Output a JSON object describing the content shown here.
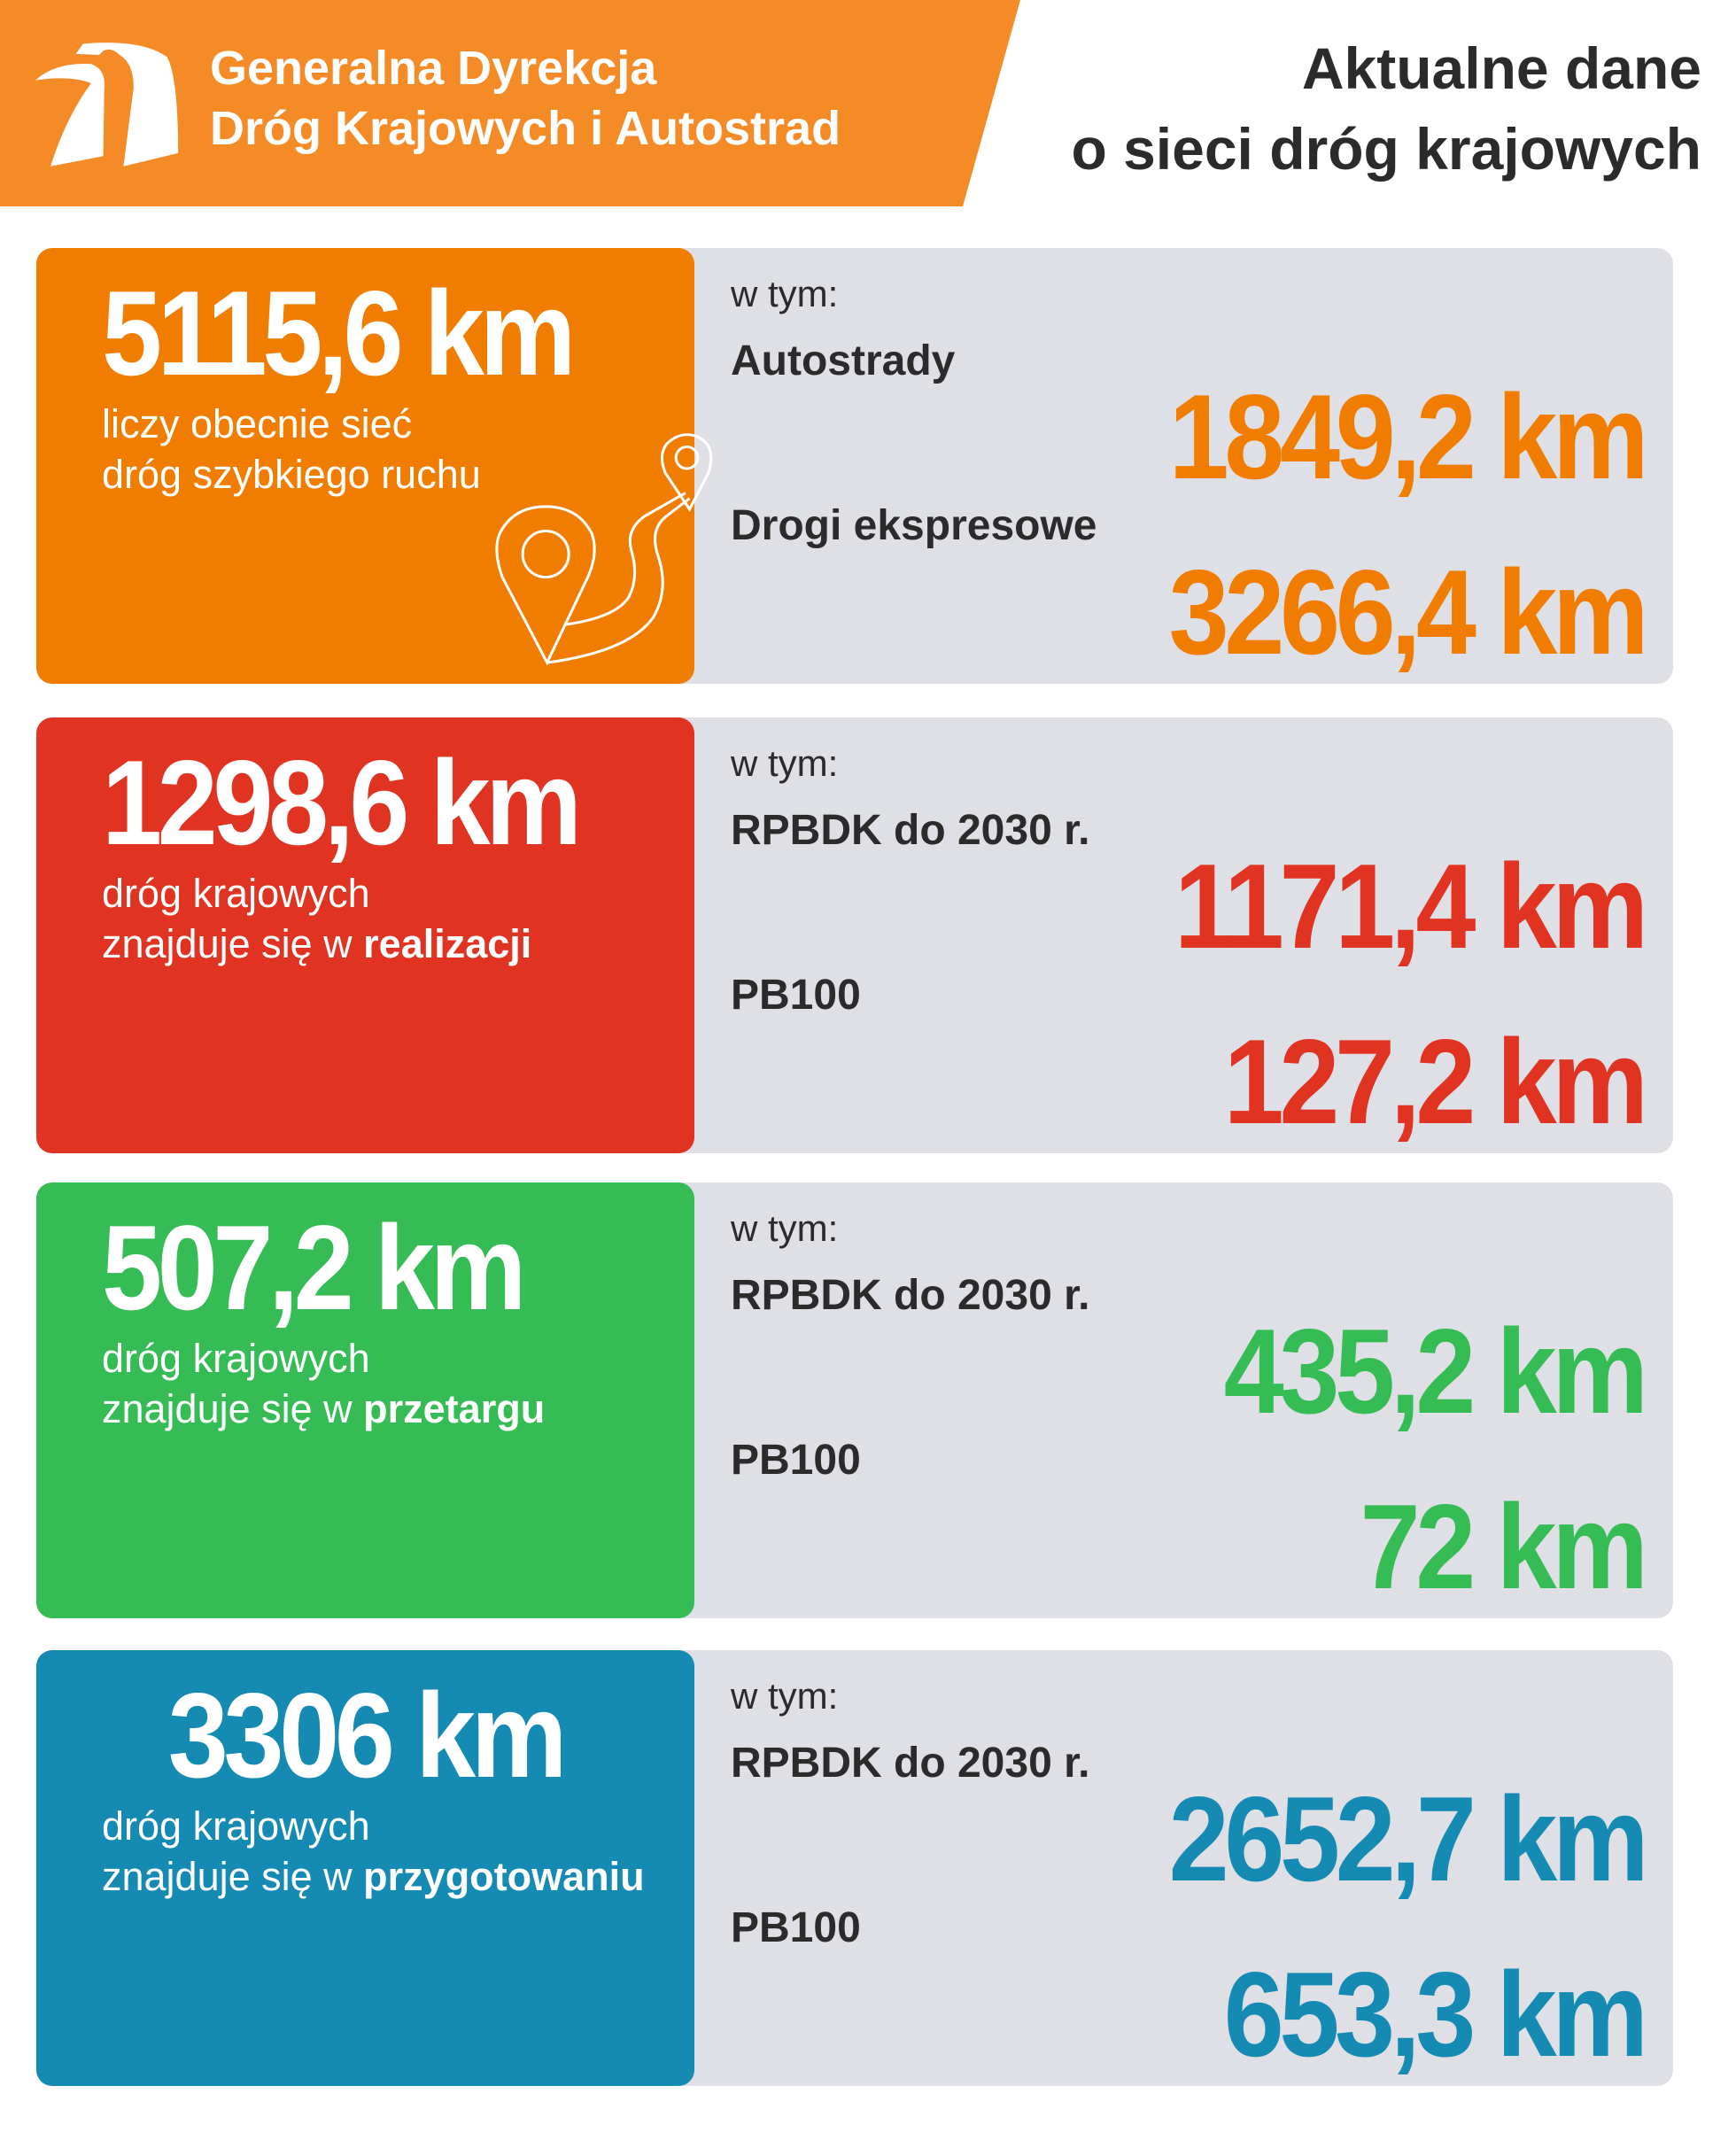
{
  "header": {
    "org_line1": "Generalna Dyrekcja",
    "org_line2": "Dróg Krajowych i Autostrad",
    "title_line1": "Aktualne dane",
    "title_line2": "o sieci dróg krajowych",
    "colors": {
      "band": "#f58b26",
      "title": "#2b2b2b"
    }
  },
  "cards": [
    {
      "total": "5115,6 km",
      "desc_line1": "liczy obecnie sieć",
      "desc_line2": "dróg szybkiego ruchu",
      "desc_bold": "",
      "intro": "w tym:",
      "items": [
        {
          "label": "Autostrady",
          "value": "1849,2 km"
        },
        {
          "label": "Drogi ekspresowe",
          "value": "3266,4 km"
        }
      ],
      "color": "#f07d00",
      "icon": "map-pin-route-icon"
    },
    {
      "total": "1298,6 km",
      "desc_line1": "dróg krajowych",
      "desc_line2": "znajduje się w ",
      "desc_bold": "realizacji",
      "intro": "w tym:",
      "items": [
        {
          "label": "RPBDK do 2030 r.",
          "value": "1171,4 km"
        },
        {
          "label": "PB100",
          "value": "127,2 km"
        }
      ],
      "color": "#e03322"
    },
    {
      "total": "507,2 km",
      "desc_line1": "dróg krajowych",
      "desc_line2": "znajduje się w ",
      "desc_bold": "przetargu",
      "intro": "w tym:",
      "items": [
        {
          "label": "RPBDK do 2030 r.",
          "value": "435,2 km"
        },
        {
          "label": "PB100",
          "value": "72 km"
        }
      ],
      "color": "#36bc55"
    },
    {
      "total": "3306 km",
      "desc_line1": "dróg krajowych",
      "desc_line2": "znajduje się w ",
      "desc_bold": "przygotowaniu",
      "intro": "w tym:",
      "items": [
        {
          "label": "RPBDK do 2030 r.",
          "value": "2652,7 km"
        },
        {
          "label": "PB100",
          "value": "653,3 km"
        }
      ],
      "color": "#158ab3"
    }
  ]
}
